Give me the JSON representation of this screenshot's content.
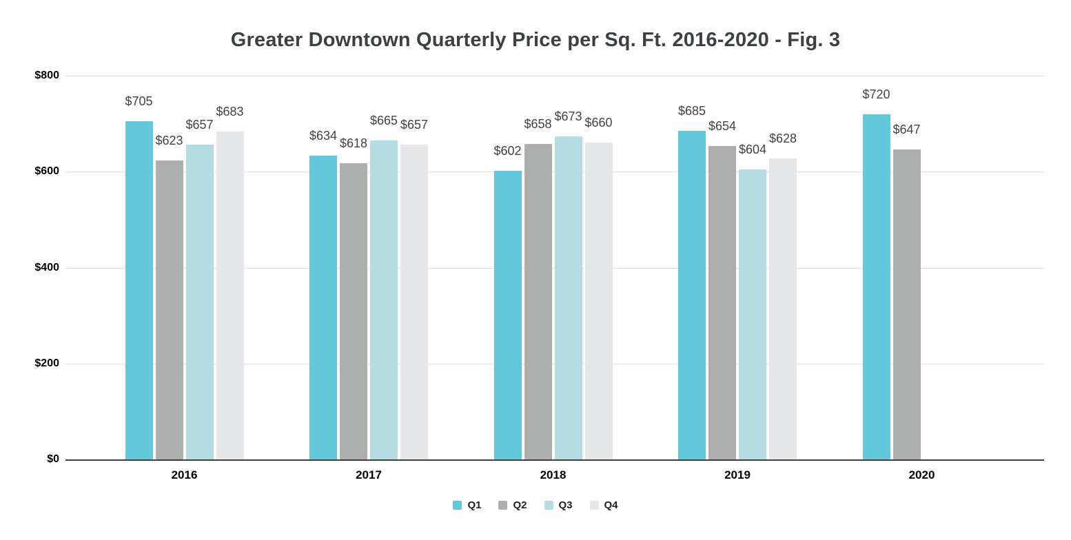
{
  "chart_data": {
    "type": "bar",
    "title": "Greater Downtown Quarterly Price per Sq. Ft. 2016-2020 - Fig. 3",
    "categories": [
      "2016",
      "2017",
      "2018",
      "2019",
      "2020"
    ],
    "series": [
      {
        "name": "Q1",
        "color": "#63C8DA",
        "values": [
          705,
          634,
          602,
          685,
          720
        ],
        "labels": [
          "$705",
          "$634",
          "$602",
          "$685",
          "$720"
        ]
      },
      {
        "name": "Q2",
        "color": "#AEB0B0",
        "values": [
          623,
          618,
          658,
          654,
          647
        ],
        "labels": [
          "$623",
          "$618",
          "$658",
          "$654",
          "$647"
        ]
      },
      {
        "name": "Q3",
        "color": "#B5DCE2",
        "values": [
          657,
          665,
          673,
          604,
          null
        ],
        "labels": [
          "$657",
          "$665",
          "$673",
          "$604",
          null
        ]
      },
      {
        "name": "Q4",
        "color": "#E6E7E9",
        "values": [
          683,
          657,
          660,
          628,
          null
        ],
        "labels": [
          "$683",
          "$657",
          "$660",
          "$628",
          null
        ]
      }
    ],
    "y_axis": {
      "min": 0,
      "max": 800,
      "ticks": [
        {
          "value": 0,
          "label": "$0"
        },
        {
          "value": 200,
          "label": "$200"
        },
        {
          "value": 400,
          "label": "$400"
        },
        {
          "value": 600,
          "label": "$600"
        },
        {
          "value": 800,
          "label": "$800"
        }
      ]
    },
    "grid": true,
    "legend_position": "bottom",
    "value_prefix": "$",
    "xlabel": "",
    "ylabel": ""
  },
  "colors": {
    "background": "#FFFFFF",
    "title_text": "#3C4043",
    "data_label_text": "#404346",
    "axis_tick_text": "#000000",
    "legend_text": "#202124",
    "gridline": "#E0E0E0",
    "baseline": "#3F3F3F"
  }
}
